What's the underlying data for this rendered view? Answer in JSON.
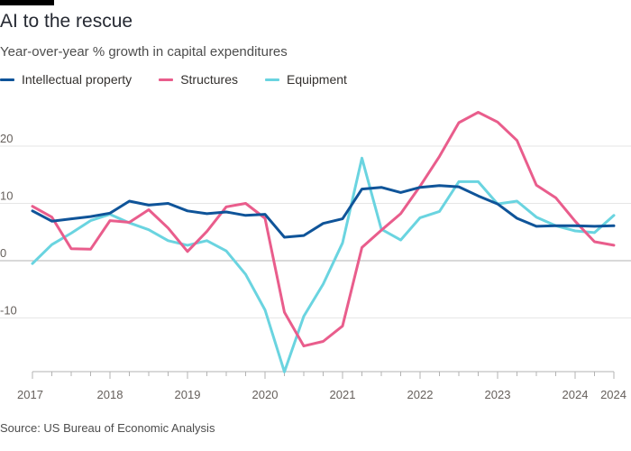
{
  "header": {
    "title": "AI to the rescue",
    "subtitle": "Year-over-year % growth in capital expenditures"
  },
  "footer": {
    "source": "Source: US Bureau of Economic Analysis"
  },
  "chart_data": {
    "type": "line",
    "title": "AI to the rescue",
    "subtitle": "Year-over-year % growth in capital expenditures",
    "xlabel": "",
    "ylabel": "",
    "ylim": [
      -20,
      28
    ],
    "xlim": [
      2017.0,
      2024.5
    ],
    "yticks": [
      20,
      10,
      0,
      -10
    ],
    "xtick_labels": [
      "2017",
      "2018",
      "2019",
      "2020",
      "2021",
      "2022",
      "2023",
      "2024",
      "2024"
    ],
    "xtick_values": [
      2017.0,
      2018.0,
      2019.0,
      2020.0,
      2021.0,
      2022.0,
      2023.0,
      2024.0,
      2024.5
    ],
    "grid": true,
    "legend_position": "top-left",
    "x": [
      2017.0,
      2017.25,
      2017.5,
      2017.75,
      2018.0,
      2018.25,
      2018.5,
      2018.75,
      2019.0,
      2019.25,
      2019.5,
      2019.75,
      2020.0,
      2020.25,
      2020.5,
      2020.75,
      2021.0,
      2021.25,
      2021.5,
      2021.75,
      2022.0,
      2022.25,
      2022.5,
      2022.75,
      2023.0,
      2023.25,
      2023.5,
      2023.75,
      2024.0,
      2024.25,
      2024.5
    ],
    "series": [
      {
        "name": "Intellectual property",
        "color": "#0f5499",
        "values": [
          8.7,
          6.9,
          7.3,
          7.7,
          8.3,
          10.4,
          9.7,
          10.0,
          8.7,
          8.2,
          8.5,
          7.9,
          8.1,
          4.1,
          4.4,
          6.5,
          7.3,
          12.5,
          12.8,
          11.9,
          12.8,
          13.1,
          12.9,
          11.3,
          9.9,
          7.4,
          6.0,
          6.1,
          6.1,
          6.0,
          6.1
        ]
      },
      {
        "name": "Structures",
        "color": "#e95d8c",
        "values": [
          9.5,
          7.6,
          2.1,
          2.0,
          7.0,
          6.7,
          8.9,
          5.7,
          1.6,
          5.1,
          9.4,
          10.0,
          7.4,
          -9.0,
          -14.9,
          -14.1,
          -11.4,
          2.3,
          5.3,
          8.2,
          13.0,
          18.2,
          24.1,
          25.9,
          24.2,
          21.0,
          13.2,
          11.0,
          6.9,
          3.3,
          2.7
        ]
      },
      {
        "name": "Equipment",
        "color": "#6ad4e0",
        "values": [
          -0.5,
          2.8,
          4.8,
          7.0,
          8.1,
          6.6,
          5.4,
          3.5,
          2.7,
          3.5,
          1.7,
          -2.4,
          -8.6,
          -19.4,
          -9.7,
          -4.1,
          3.1,
          17.9,
          5.5,
          3.6,
          7.5,
          8.6,
          13.8,
          13.8,
          9.9,
          10.4,
          7.6,
          6.1,
          5.2,
          4.9,
          7.9
        ]
      }
    ]
  }
}
